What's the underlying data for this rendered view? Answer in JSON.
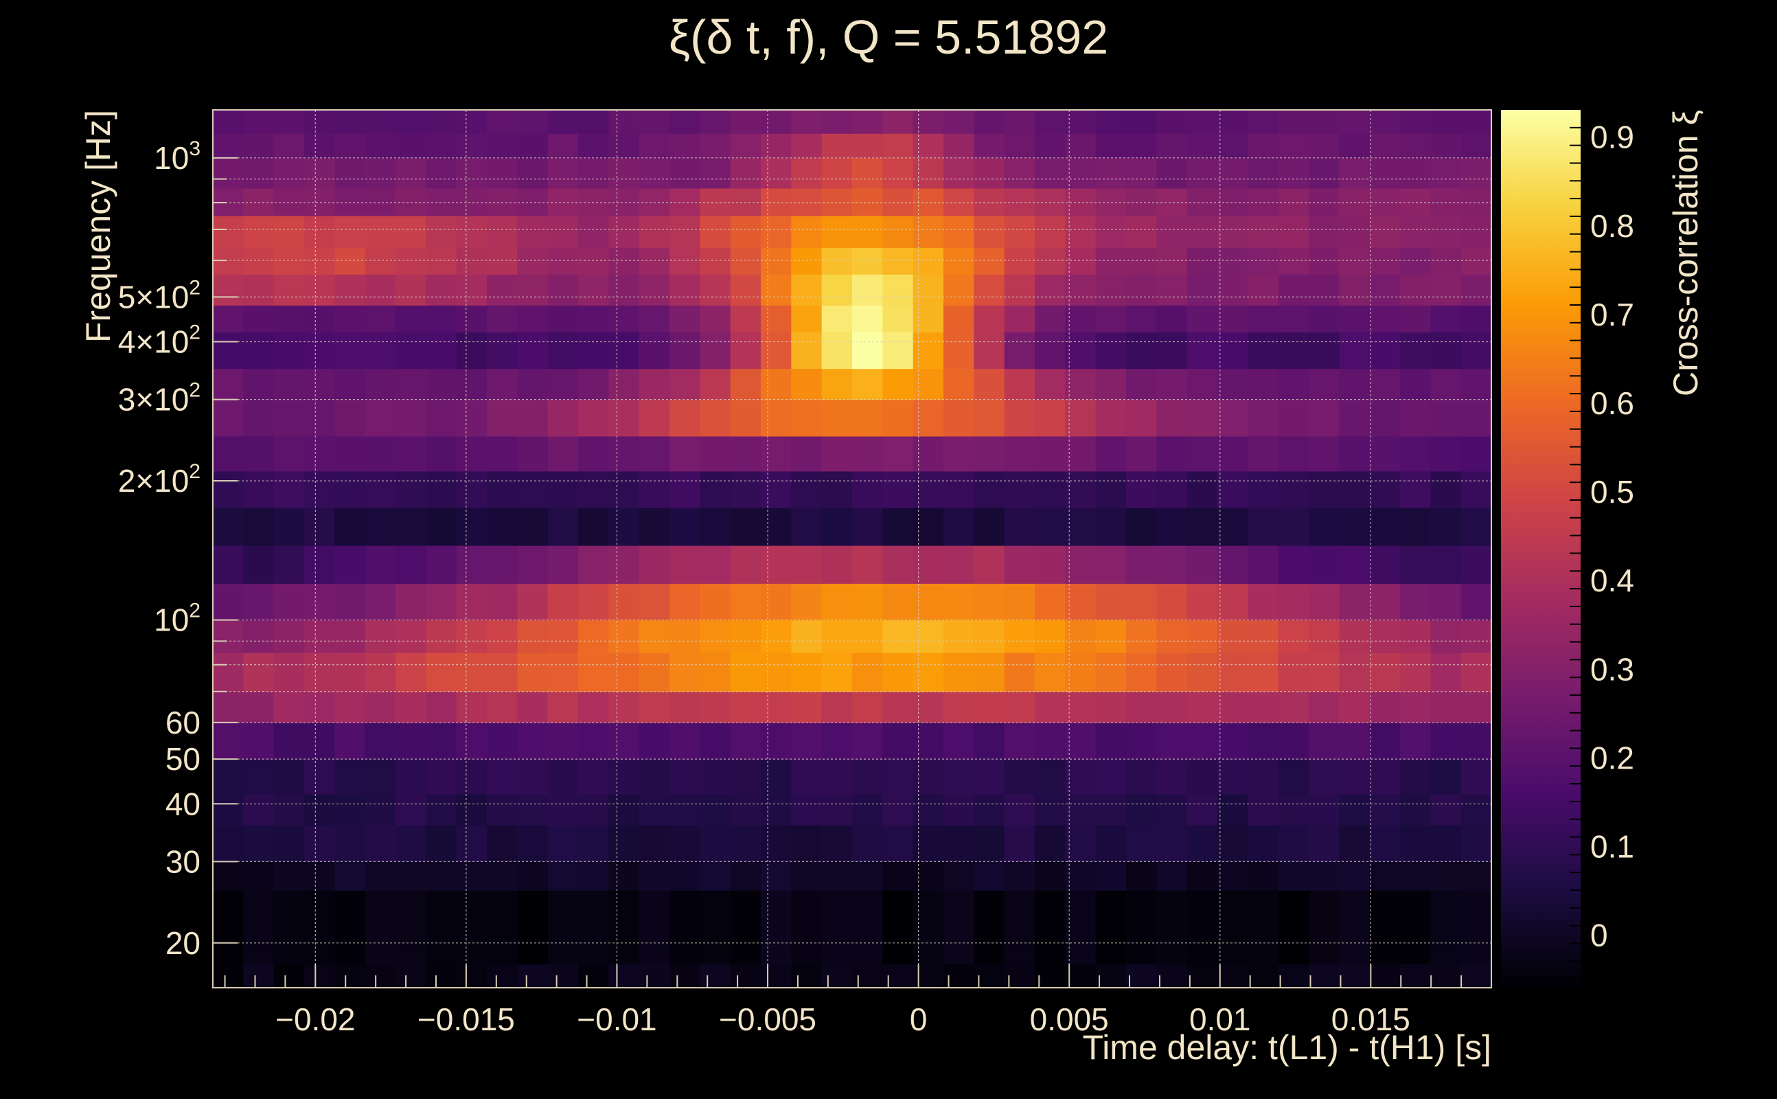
{
  "chart_data": {
    "type": "heatmap",
    "title": "ξ(δ t, f), Q = 5.51892",
    "xlabel": "Time delay: t(L1) - t(H1) [s]",
    "ylabel": "Frequency [Hz]",
    "zlabel": "Cross-correlation ξ",
    "xlim": [
      -0.0234,
      0.019
    ],
    "ylim": [
      16,
      1270
    ],
    "yscale": "log",
    "zlim": [
      -0.06,
      0.93
    ],
    "grid": true,
    "x_ticks": [
      {
        "value": -0.02,
        "label": "−0.02"
      },
      {
        "value": -0.015,
        "label": "−0.015"
      },
      {
        "value": -0.01,
        "label": "−0.01"
      },
      {
        "value": -0.005,
        "label": "−0.005"
      },
      {
        "value": 0,
        "label": "0"
      },
      {
        "value": 0.005,
        "label": "0.005"
      },
      {
        "value": 0.01,
        "label": "0.01"
      },
      {
        "value": 0.015,
        "label": "0.015"
      }
    ],
    "y_ticks": [
      {
        "value": 20,
        "label": "20"
      },
      {
        "value": 30,
        "label": "30"
      },
      {
        "value": 40,
        "label": "40"
      },
      {
        "value": 50,
        "label": "50"
      },
      {
        "value": 60,
        "label": "60"
      },
      {
        "value": 100,
        "label": "10",
        "sup": "2"
      },
      {
        "value": 200,
        "label": "2×10",
        "sup": "2"
      },
      {
        "value": 300,
        "label": "3×10",
        "sup": "2"
      },
      {
        "value": 400,
        "label": "4×10",
        "sup": "2"
      },
      {
        "value": 500,
        "label": "5×10",
        "sup": "2"
      },
      {
        "value": 1000,
        "label": "10",
        "sup": "3"
      }
    ],
    "z_ticks": [
      {
        "value": 0,
        "label": "0"
      },
      {
        "value": 0.1,
        "label": "0.1"
      },
      {
        "value": 0.2,
        "label": "0.2"
      },
      {
        "value": 0.3,
        "label": "0.3"
      },
      {
        "value": 0.4,
        "label": "0.4"
      },
      {
        "value": 0.5,
        "label": "0.5"
      },
      {
        "value": 0.6,
        "label": "0.6"
      },
      {
        "value": 0.7,
        "label": "0.7"
      },
      {
        "value": 0.8,
        "label": "0.8"
      },
      {
        "value": 0.9,
        "label": "0.9"
      }
    ],
    "colormap": [
      "#000004",
      "#1b0c41",
      "#4a0c6b",
      "#781c6d",
      "#a52c60",
      "#cf4446",
      "#ed6925",
      "#fb9b06",
      "#f7d13d",
      "#fcffa4"
    ],
    "x_bin_count": 42,
    "y_bands": [
      {
        "f_lo": 16,
        "f_hi": 18,
        "profile": "flat",
        "base": -0.03
      },
      {
        "f_lo": 18,
        "f_hi": 26,
        "profile": "flat",
        "base": -0.04
      },
      {
        "f_lo": 26,
        "f_hi": 30,
        "profile": "flat",
        "base": 0.0
      },
      {
        "f_lo": 30,
        "f_hi": 36,
        "profile": "flat",
        "base": 0.05
      },
      {
        "f_lo": 36,
        "f_hi": 42,
        "profile": "flat",
        "base": 0.07
      },
      {
        "f_lo": 42,
        "f_hi": 50,
        "profile": "flat",
        "base": 0.08
      },
      {
        "f_lo": 50,
        "f_hi": 60,
        "profile": "flat",
        "base": 0.16
      },
      {
        "f_lo": 60,
        "f_hi": 70,
        "profile": "broad",
        "base": 0.28,
        "peak": 0.45,
        "center": -0.002,
        "width": 0.014
      },
      {
        "f_lo": 70,
        "f_hi": 85,
        "profile": "broad",
        "base": 0.28,
        "peak": 0.7,
        "center": -0.002,
        "width": 0.012
      },
      {
        "f_lo": 85,
        "f_hi": 100,
        "profile": "broad",
        "base": 0.22,
        "peak": 0.76,
        "center": -0.001,
        "width": 0.011
      },
      {
        "f_lo": 100,
        "f_hi": 120,
        "profile": "broad",
        "base": 0.16,
        "peak": 0.68,
        "center": -0.001,
        "width": 0.01
      },
      {
        "f_lo": 120,
        "f_hi": 145,
        "profile": "broad",
        "base": 0.08,
        "peak": 0.42,
        "center": -0.002,
        "width": 0.009
      },
      {
        "f_lo": 145,
        "f_hi": 175,
        "profile": "flat",
        "base": 0.05
      },
      {
        "f_lo": 175,
        "f_hi": 210,
        "profile": "flat",
        "base": 0.11
      },
      {
        "f_lo": 210,
        "f_hi": 250,
        "profile": "narrow",
        "base": 0.18,
        "peak": 0.28,
        "center": -0.002,
        "width": 0.008
      },
      {
        "f_lo": 250,
        "f_hi": 300,
        "profile": "narrow",
        "base": 0.24,
        "peak": 0.62,
        "center": -0.002,
        "width": 0.006
      },
      {
        "f_lo": 300,
        "f_hi": 350,
        "profile": "narrow",
        "base": 0.22,
        "peak": 0.74,
        "center": -0.0017,
        "width": 0.004
      },
      {
        "f_lo": 350,
        "f_hi": 420,
        "profile": "narrow",
        "base": 0.14,
        "peak": 0.92,
        "center": -0.0017,
        "width": 0.0028
      },
      {
        "f_lo": 420,
        "f_hi": 480,
        "profile": "narrow",
        "base": 0.2,
        "peak": 0.9,
        "center": -0.0017,
        "width": 0.0028
      },
      {
        "f_lo": 480,
        "f_hi": 560,
        "profile": "side",
        "base": 0.28,
        "peak": 0.86,
        "center": -0.0017,
        "width": 0.003,
        "side": 0.42
      },
      {
        "f_lo": 560,
        "f_hi": 640,
        "profile": "side",
        "base": 0.3,
        "peak": 0.8,
        "center": -0.0017,
        "width": 0.0035,
        "side": 0.5
      },
      {
        "f_lo": 640,
        "f_hi": 750,
        "profile": "side",
        "base": 0.32,
        "peak": 0.7,
        "center": -0.0017,
        "width": 0.004,
        "side": 0.48
      },
      {
        "f_lo": 750,
        "f_hi": 860,
        "profile": "narrow",
        "base": 0.3,
        "peak": 0.56,
        "center": -0.0017,
        "width": 0.004
      },
      {
        "f_lo": 860,
        "f_hi": 1000,
        "profile": "narrow",
        "base": 0.26,
        "peak": 0.52,
        "center": -0.0017,
        "width": 0.0025
      },
      {
        "f_lo": 1000,
        "f_hi": 1130,
        "profile": "narrow",
        "base": 0.22,
        "peak": 0.46,
        "center": -0.0017,
        "width": 0.0025
      },
      {
        "f_lo": 1130,
        "f_hi": 1270,
        "profile": "narrow",
        "base": 0.2,
        "peak": 0.3,
        "center": -0.0017,
        "width": 0.003
      }
    ]
  }
}
